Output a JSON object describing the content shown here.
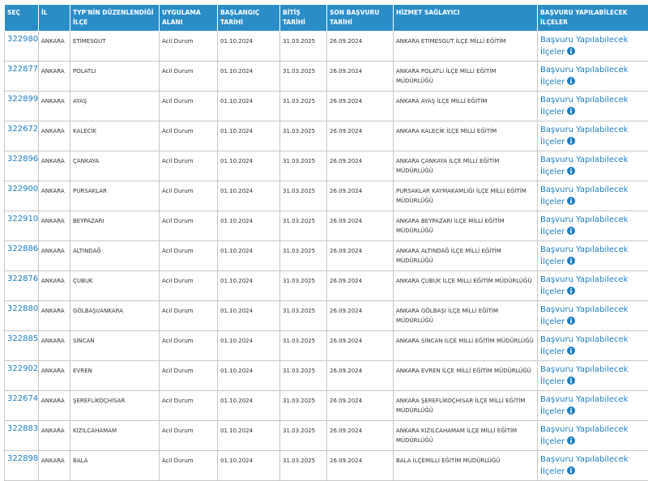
{
  "table": {
    "headers": [
      "SEÇ",
      "İL",
      "TYP'NİN DÜZENLENDİĞİ İLÇE",
      "UYGULAMA ALANI",
      "BAŞLANGIÇ TARİHİ",
      "BİTİŞ TARİHİ",
      "SON BAŞVURU TARİHİ",
      "HİZMET SAĞLAYICI",
      "BAŞVURU YAPILABİLECEK İLÇELER"
    ],
    "rows": [
      [
        "322980",
        "ANKARA",
        "ETİMESGUT",
        "Acil Durum",
        "01.10.2024",
        "31.03.2025",
        "26.09.2024",
        "ANKARA ETİMESGUT İLÇE MİLLİ EĞİTİM",
        "Başvuru Yapılabilecek İlçeler"
      ],
      [
        "322877",
        "ANKARA",
        "POLATLI",
        "Acil Durum",
        "01.10.2024",
        "31.03.2025",
        "26.09.2024",
        "ANKARA POLATLI İLÇE MİLLİ EĞİTİM MÜDÜRLÜĞÜ",
        "Başvuru Yapılabilecek İlçeler"
      ],
      [
        "322899",
        "ANKARA",
        "AYAŞ",
        "Acil Durum",
        "01.10.2024",
        "31.03.2025",
        "26.09.2024",
        "ANKARA AYAŞ İLÇE MİLLİ EĞİTİM",
        "Başvuru Yapılabilecek İlçeler"
      ],
      [
        "322672",
        "ANKARA",
        "KALECİK",
        "Acil Durum",
        "01.10.2024",
        "31.03.2025",
        "26.09.2024",
        "ANKARA KALECİK İLÇE MİLLİ EĞİTİM",
        "Başvuru Yapılabilecek İlçeler"
      ],
      [
        "322896",
        "ANKARA",
        "ÇANKAYA",
        "Acil Durum",
        "01.10.2024",
        "31.03.2025",
        "26.09.2024",
        "ANKARA ÇANKAYA İLÇE MİLLİ EĞİTİM MÜDÜRLÜĞÜ",
        "Başvuru Yapılabilecek İlçeler"
      ],
      [
        "322900",
        "ANKARA",
        "PURSAKLAR",
        "Acil Durum",
        "01.10.2024",
        "31.03.2025",
        "26.09.2024",
        "PURSAKLAR KAYMAKAMLIĞI İLÇE MİLLİ EĞİTİM MÜDÜRLÜĞÜ",
        "Başvuru Yapılabilecek İlçeler"
      ],
      [
        "322910",
        "ANKARA",
        "BEYPAZARI",
        "Acil Durum",
        "01.10.2024",
        "31.03.2025",
        "26.09.2024",
        "ANKARA BEYPAZARI İLÇE MİLLİ EĞİTİM MÜDÜRLÜĞÜ",
        "Başvuru Yapılabilecek İlçeler"
      ],
      [
        "322886",
        "ANKARA",
        "ALTINDAĞ",
        "Acil Durum",
        "01.10.2024",
        "31.03.2025",
        "26.09.2024",
        "ANKARA ALTINDAĞ İLÇE MİLLİ EĞİTİM MÜDÜRLÜĞÜ",
        "Başvuru Yapılabilecek İlçeler"
      ],
      [
        "322876",
        "ANKARA",
        "ÇUBUK",
        "Acil Durum",
        "01.10.2024",
        "31.03.2025",
        "26.09.2024",
        "ANKARA ÇUBUK İLÇE MİLLİ EĞİTİM MÜDÜRLÜĞÜ",
        "Başvuru Yapılabilecek İlçeler"
      ],
      [
        "322880",
        "ANKARA",
        "GÖLBAŞI/ANKARA",
        "Acil Durum",
        "01.10.2024",
        "31.03.2025",
        "26.09.2024",
        "ANKARA GÖLBAŞI İLÇE MİLLİ EĞİTİM MÜDÜRLÜĞÜ",
        "Başvuru Yapılabilecek İlçeler"
      ],
      [
        "322885",
        "ANKARA",
        "SİNCAN",
        "Acil Durum",
        "01.10.2024",
        "31.03.2025",
        "26.09.2024",
        "ANKARA SİNCAN İLÇE MİLLİ EĞİTİM MÜDÜRLÜĞÜ",
        "Başvuru Yapılabilecek İlçeler"
      ],
      [
        "322902",
        "ANKARA",
        "EVREN",
        "Acil Durum",
        "01.10.2024",
        "31.03.2025",
        "26.09.2024",
        "ANKARA EVREN İLÇE MİLLİ EĞİTİM MÜDÜRLÜĞÜ",
        "Başvuru Yapılabilecek İlçeler"
      ],
      [
        "322674",
        "ANKARA",
        "ŞEREFLİKOÇHİSAR",
        "Acil Durum",
        "01.10.2024",
        "31.03.2025",
        "26.09.2024",
        "ANKARA ŞEREFLİKOÇHİSAR İLÇE MİLLİ EĞİTİM MÜDÜRLÜĞÜ",
        "Başvuru Yapılabilecek İlçeler"
      ],
      [
        "322883",
        "ANKARA",
        "KIZILCAHAMAM",
        "Acil Durum",
        "01.10.2024",
        "31.03.2025",
        "26.09.2024",
        "ANKARA KIZILCAHAMAM İLÇE MİLLİ EĞİTİM MÜDÜRLÜĞÜ",
        "Başvuru Yapılabilecek İlçeler"
      ],
      [
        "322898",
        "ANKARA",
        "BALA",
        "Acil Durum",
        "01.10.2024",
        "31.03.2025",
        "26.09.2024",
        "BALA İLÇEMİLLİ EĞİTİM MÜDÜRLÜĞÜ",
        "Başvuru Yapılabilecek İlçeler"
      ]
    ]
  }
}
